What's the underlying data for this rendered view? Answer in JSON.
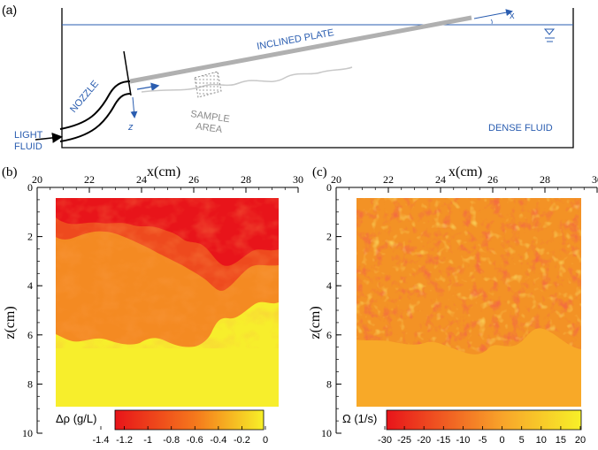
{
  "panel_a": {
    "label": "(a)",
    "plate_label": "INCLINED PLATE",
    "nozzle_label": "NOZZLE",
    "sample_label_1": "SAMPLE",
    "sample_label_2": "AREA",
    "light_fluid_1": "LIGHT",
    "light_fluid_2": "FLUID",
    "dense_fluid": "DENSE FLUID",
    "axis_x": "x",
    "axis_z": "z"
  },
  "chart_data": [
    {
      "type": "heatmap",
      "panel_label": "(b)",
      "xlabel": "x(cm)",
      "ylabel": "z(cm)",
      "x_ticks": [
        20,
        22,
        24,
        26,
        28,
        30
      ],
      "y_ticks": [
        0,
        2,
        4,
        6,
        8,
        10
      ],
      "xlim": [
        20,
        30
      ],
      "ylim": [
        0,
        10
      ],
      "colorbar_label": "Δρ (g/L)",
      "colorbar_ticks": [
        "-1.4",
        "-1.2",
        "-1",
        "-0.8",
        "-0.6",
        "-0.4",
        "-0.2",
        "0"
      ],
      "colorbar_range": [
        -1.4,
        0
      ],
      "colors": {
        "low": "#e8141a",
        "mid": "#f57a1c",
        "high": "#f7f028"
      }
    },
    {
      "type": "heatmap",
      "panel_label": "(c)",
      "xlabel": "x(cm)",
      "ylabel": "z(cm)",
      "x_ticks": [
        20,
        22,
        24,
        26,
        28,
        30
      ],
      "y_ticks": [
        0,
        2,
        4,
        6,
        8,
        10
      ],
      "xlim": [
        20,
        30
      ],
      "ylim": [
        0,
        10
      ],
      "colorbar_label": "Ω (1/s)",
      "colorbar_ticks": [
        "-30",
        "-25",
        "-20",
        "-15",
        "-10",
        "-5",
        "0",
        "5",
        "10",
        "15",
        "20"
      ],
      "colorbar_range": [
        -30,
        20
      ],
      "colors": {
        "low": "#e8141a",
        "mid": "#f8a52a",
        "high": "#f7f028"
      }
    }
  ]
}
